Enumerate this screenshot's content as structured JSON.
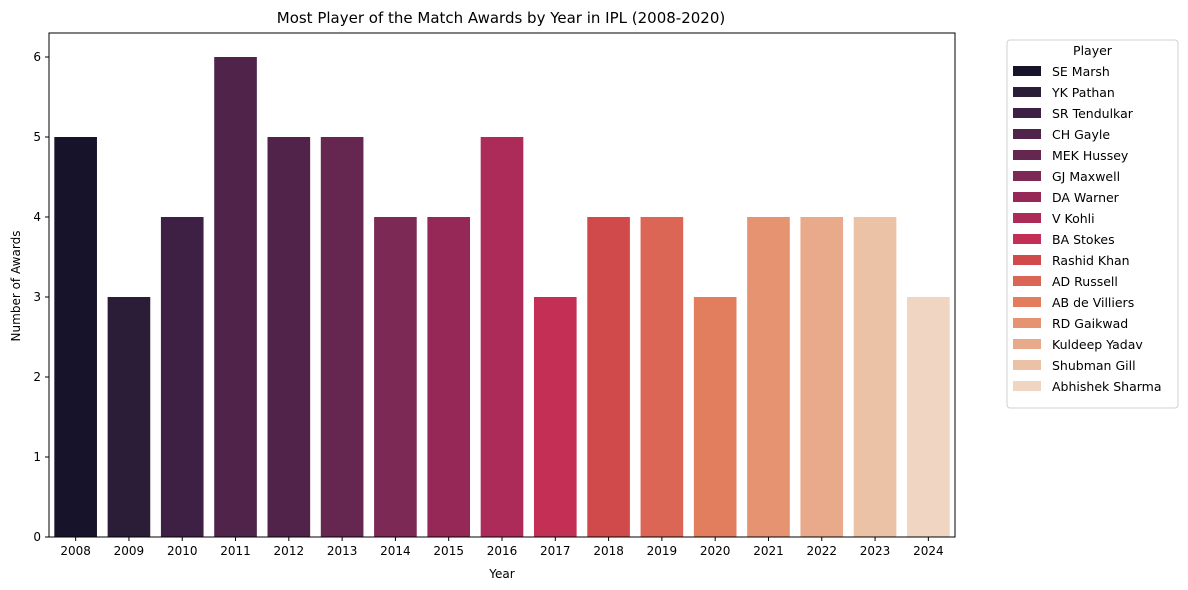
{
  "chart_data": {
    "type": "bar",
    "title": "Most Player of the Match Awards by Year in IPL (2008-2020)",
    "xlabel": "Year",
    "ylabel": "Number of Awards",
    "ylim": [
      0,
      6.3
    ],
    "yticks": [
      "0",
      "1",
      "2",
      "3",
      "4",
      "5",
      "6"
    ],
    "categories": [
      "2008",
      "2009",
      "2010",
      "2011",
      "2012",
      "2013",
      "2014",
      "2015",
      "2016",
      "2017",
      "2018",
      "2019",
      "2020",
      "2021",
      "2022",
      "2023",
      "2024"
    ],
    "values": [
      5,
      3,
      4,
      6,
      5,
      5,
      4,
      4,
      5,
      3,
      4,
      4,
      3,
      4,
      4,
      4,
      3
    ],
    "bar_colors": [
      "#16132a",
      "#2b1c38",
      "#3e2044",
      "#50234b",
      "#51234b",
      "#65274f",
      "#7d2955",
      "#962858",
      "#ac2b59",
      "#c32f55",
      "#d14a4b",
      "#dc6656",
      "#e27d5d",
      "#e69372",
      "#e9aa8c",
      "#ecc2a7",
      "#f0d6c2"
    ],
    "grid": false,
    "legend": {
      "title": "Player",
      "placement": "outside-right",
      "entries": [
        {
          "label": "SE Marsh",
          "color": "#16132a"
        },
        {
          "label": "YK Pathan",
          "color": "#2b1c38"
        },
        {
          "label": "SR Tendulkar",
          "color": "#3e2044"
        },
        {
          "label": "CH Gayle",
          "color": "#50234b"
        },
        {
          "label": "MEK Hussey",
          "color": "#65274f"
        },
        {
          "label": "GJ Maxwell",
          "color": "#7d2955"
        },
        {
          "label": "DA Warner",
          "color": "#962858"
        },
        {
          "label": "V Kohli",
          "color": "#ac2b59"
        },
        {
          "label": "BA Stokes",
          "color": "#c32f55"
        },
        {
          "label": "Rashid Khan",
          "color": "#d14a4b"
        },
        {
          "label": "AD Russell",
          "color": "#dc6656"
        },
        {
          "label": "AB de Villiers",
          "color": "#e27d5d"
        },
        {
          "label": "RD Gaikwad",
          "color": "#e69372"
        },
        {
          "label": "Kuldeep Yadav",
          "color": "#e9aa8c"
        },
        {
          "label": "Shubman Gill",
          "color": "#ecc2a7"
        },
        {
          "label": "Abhishek Sharma",
          "color": "#f0d6c2"
        }
      ]
    }
  }
}
